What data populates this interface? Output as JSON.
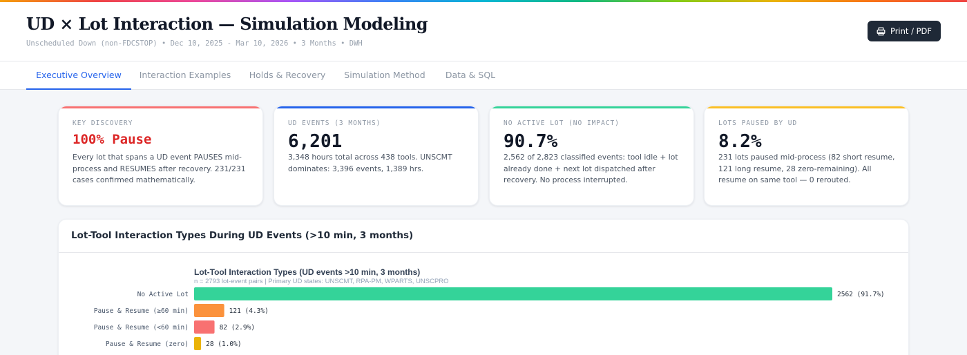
{
  "header": {
    "title": "UD × Lot Interaction — Simulation Modeling",
    "subtitle": "Unscheduled Down (non-FDCSTOP) • Dec 10, 2025 - Mar 10, 2026 • 3 Months • DWH",
    "print_label": "Print / PDF"
  },
  "tabs": [
    {
      "label": "Executive Overview",
      "active": true
    },
    {
      "label": "Interaction Examples",
      "active": false
    },
    {
      "label": "Holds & Recovery",
      "active": false
    },
    {
      "label": "Simulation Method",
      "active": false
    },
    {
      "label": "Data & SQL",
      "active": false
    }
  ],
  "cards": [
    {
      "label": "KEY DISCOVERY",
      "value": "100% Pause",
      "desc": "Every lot that spans a UD event PAUSES mid-process and RESUMES after recovery. 231/231 cases confirmed mathematically.",
      "accent": "#f87171"
    },
    {
      "label": "UD EVENTS (3 MONTHS)",
      "value": "6,201",
      "desc": "3,348 hours total across 438 tools. UNSCMT dominates: 3,396 events, 1,389 hrs.",
      "accent": "#2563eb"
    },
    {
      "label": "NO ACTIVE LOT (NO IMPACT)",
      "value": "90.7%",
      "desc": "2,562 of 2,823 classified events: tool idle + lot already done + next lot dispatched after recovery. No process interrupted.",
      "accent": "#34d399"
    },
    {
      "label": "LOTS PAUSED BY UD",
      "value": "8.2%",
      "desc": "231 lots paused mid-process (82 short resume, 121 long resume, 28 zero-remaining). All resume on same tool — 0 rerouted.",
      "accent": "#fbbf24"
    }
  ],
  "panel": {
    "title": "Lot-Tool Interaction Types During UD Events (>10 min, 3 months)"
  },
  "chart_data": {
    "type": "bar",
    "orientation": "horizontal",
    "title": "Lot-Tool Interaction Types (UD events >10 min, 3 months)",
    "subtitle": "n = 2793 lot-event pairs | Primary UD states: UNSCMT, RPA-PM, WPARTS, UNSCPRO",
    "categories": [
      "No Active Lot",
      "Pause & Resume (≥60 min)",
      "Pause & Resume (<60 min)",
      "Pause & Resume (zero)"
    ],
    "values": [
      2562,
      121,
      82,
      28
    ],
    "labels": [
      "2562 (91.7%)",
      "121 (4.3%)",
      "82 (2.9%)",
      "28 (1.0%)"
    ],
    "colors": [
      "#34d399",
      "#fb923c",
      "#f87171",
      "#eab308"
    ],
    "xlim": [
      0,
      2562
    ],
    "grid": false
  }
}
